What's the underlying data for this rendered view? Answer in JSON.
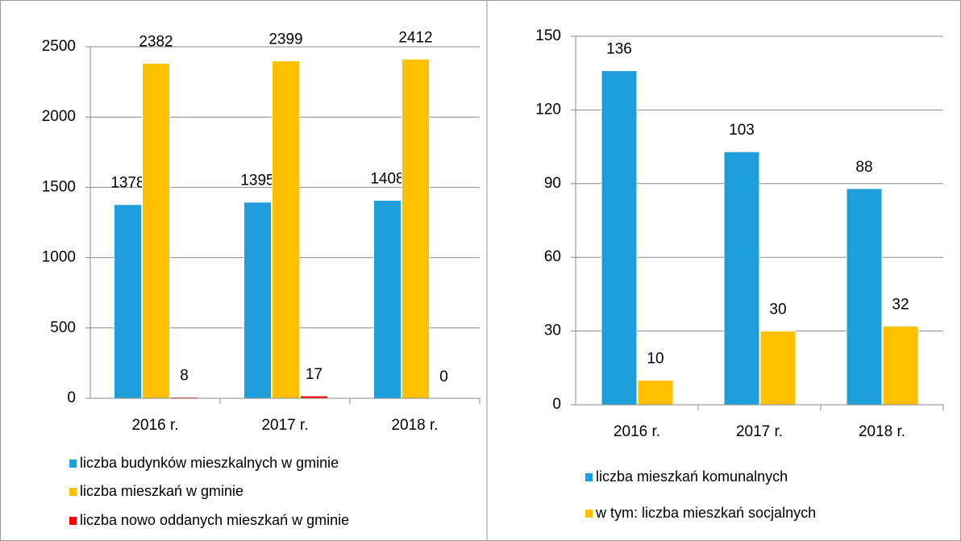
{
  "chart_data": [
    {
      "type": "bar",
      "categories": [
        "2016 r.",
        "2017 r.",
        "2018 r."
      ],
      "series": [
        {
          "name": "liczba budynków mieszkalnych w gminie",
          "color": "#1e9fdb",
          "values": [
            1378,
            1395,
            1408
          ]
        },
        {
          "name": "liczba mieszkań w gminie",
          "color": "#ffc000",
          "values": [
            2382,
            2399,
            2412
          ]
        },
        {
          "name": "liczba nowo oddanych mieszkań w gminie",
          "color": "#ff0000",
          "values": [
            8,
            17,
            0
          ]
        }
      ],
      "ylim": [
        0,
        2500
      ],
      "yticks": [
        0,
        500,
        1000,
        1500,
        2000,
        2500
      ],
      "grid": true,
      "legend": "bottom"
    },
    {
      "type": "bar",
      "categories": [
        "2016 r.",
        "2017 r.",
        "2018 r."
      ],
      "series": [
        {
          "name": "liczba mieszkań komunalnych",
          "color": "#1e9fdb",
          "values": [
            136,
            103,
            88
          ]
        },
        {
          "name": "w tym: liczba mieszkań socjalnych",
          "color": "#ffc000",
          "values": [
            10,
            30,
            32
          ]
        }
      ],
      "ylim": [
        0,
        150
      ],
      "yticks": [
        0,
        30,
        60,
        90,
        120,
        150
      ],
      "grid": true,
      "legend": "bottom"
    }
  ]
}
